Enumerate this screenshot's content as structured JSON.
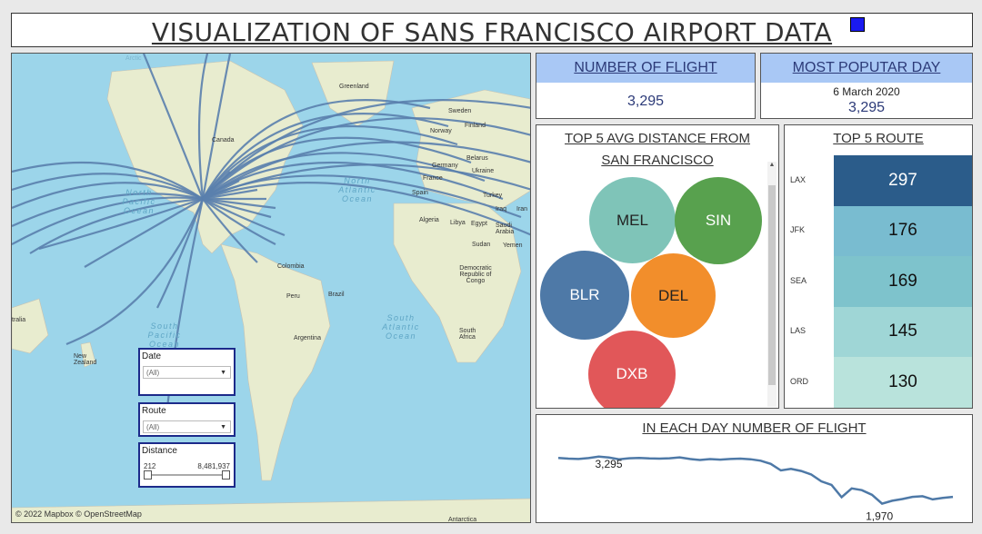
{
  "header": {
    "title": "VISUALIZATION OF SANS FRANCISCO AIRPORT DATA"
  },
  "map": {
    "credit": "© 2022 Mapbox © OpenStreetMap",
    "land_labels": [
      "Greenland",
      "Sweden",
      "Finland",
      "Norway",
      "Belarus",
      "Germany",
      "Ukraine",
      "France",
      "Spain",
      "Turkey",
      "Iraq",
      "Iran",
      "Algeria",
      "Libya",
      "Egypt",
      "Saudi Arabia",
      "Sudan",
      "Yemen",
      "Democratic Republic of Congo",
      "South Africa",
      "Canada",
      "Colombia",
      "Peru",
      "Brazil",
      "Argentina",
      "New Zealand",
      "tralia",
      "Arctic",
      "Antarctica"
    ],
    "ocean_labels": [
      "North Pacific Ocean",
      "North Atlantic Ocean",
      "South Pacific Ocean",
      "South Atlantic Ocean"
    ]
  },
  "filters": {
    "date": {
      "label": "Date",
      "value": "(All)"
    },
    "route": {
      "label": "Route",
      "value": "(All)"
    },
    "distance": {
      "label": "Distance",
      "min": "212",
      "max": "8,481,937"
    }
  },
  "kpis": {
    "flights": {
      "label": "NUMBER OF FLIGHT",
      "value": "3,295"
    },
    "popular_day": {
      "label": "MOST POPUTAR DAY",
      "date": "6 March 2020",
      "value": "3,295"
    }
  },
  "avg_distance": {
    "title_line1": "TOP 5 AVG DISTANCE FROM",
    "title_line2": "SAN FRANCISCO",
    "bubbles": [
      {
        "label": "MEL",
        "color": "#7fc4b8"
      },
      {
        "label": "SIN",
        "color": "#58a14e"
      },
      {
        "label": "BLR",
        "color": "#4e79a7"
      },
      {
        "label": "DEL",
        "color": "#f28e2b"
      },
      {
        "label": "DXB",
        "color": "#e15759"
      }
    ]
  },
  "top_routes": {
    "title": "TOP 5 ROUTE",
    "rows": [
      {
        "code": "LAX",
        "value": "297",
        "color": "#2b5c8a",
        "text": "#ffffff"
      },
      {
        "code": "JFK",
        "value": "176",
        "color": "#79bcd0",
        "text": "#111111"
      },
      {
        "code": "SEA",
        "value": "169",
        "color": "#7ec3cc",
        "text": "#111111"
      },
      {
        "code": "LAS",
        "value": "145",
        "color": "#9fd6d6",
        "text": "#111111"
      },
      {
        "code": "ORD",
        "value": "130",
        "color": "#b9e3dc",
        "text": "#111111"
      }
    ]
  },
  "daily": {
    "title": "IN EACH DAY NUMBER OF FLIGHT",
    "max_label": "3,295",
    "min_label": "1,970"
  },
  "chart_data": {
    "type": "line",
    "title": "IN EACH DAY NUMBER OF FLIGHT",
    "xlabel": "",
    "ylabel": "",
    "series": [
      {
        "values": [
          3260,
          3240,
          3230,
          3255,
          3295,
          3270,
          3220,
          3250,
          3260,
          3245,
          3240,
          3250,
          3275,
          3230,
          3200,
          3225,
          3210,
          3230,
          3240,
          3220,
          3180,
          3090,
          2905,
          2950,
          2890,
          2790,
          2600,
          2500,
          2150,
          2400,
          2350,
          2220,
          1970,
          2050,
          2100,
          2160,
          2180,
          2090,
          2130,
          2160
        ]
      }
    ],
    "annotations": [
      {
        "label": "3,295",
        "value": 3295
      },
      {
        "label": "1,970",
        "value": 1970
      }
    ],
    "ylim": [
      1600,
      3700
    ]
  }
}
